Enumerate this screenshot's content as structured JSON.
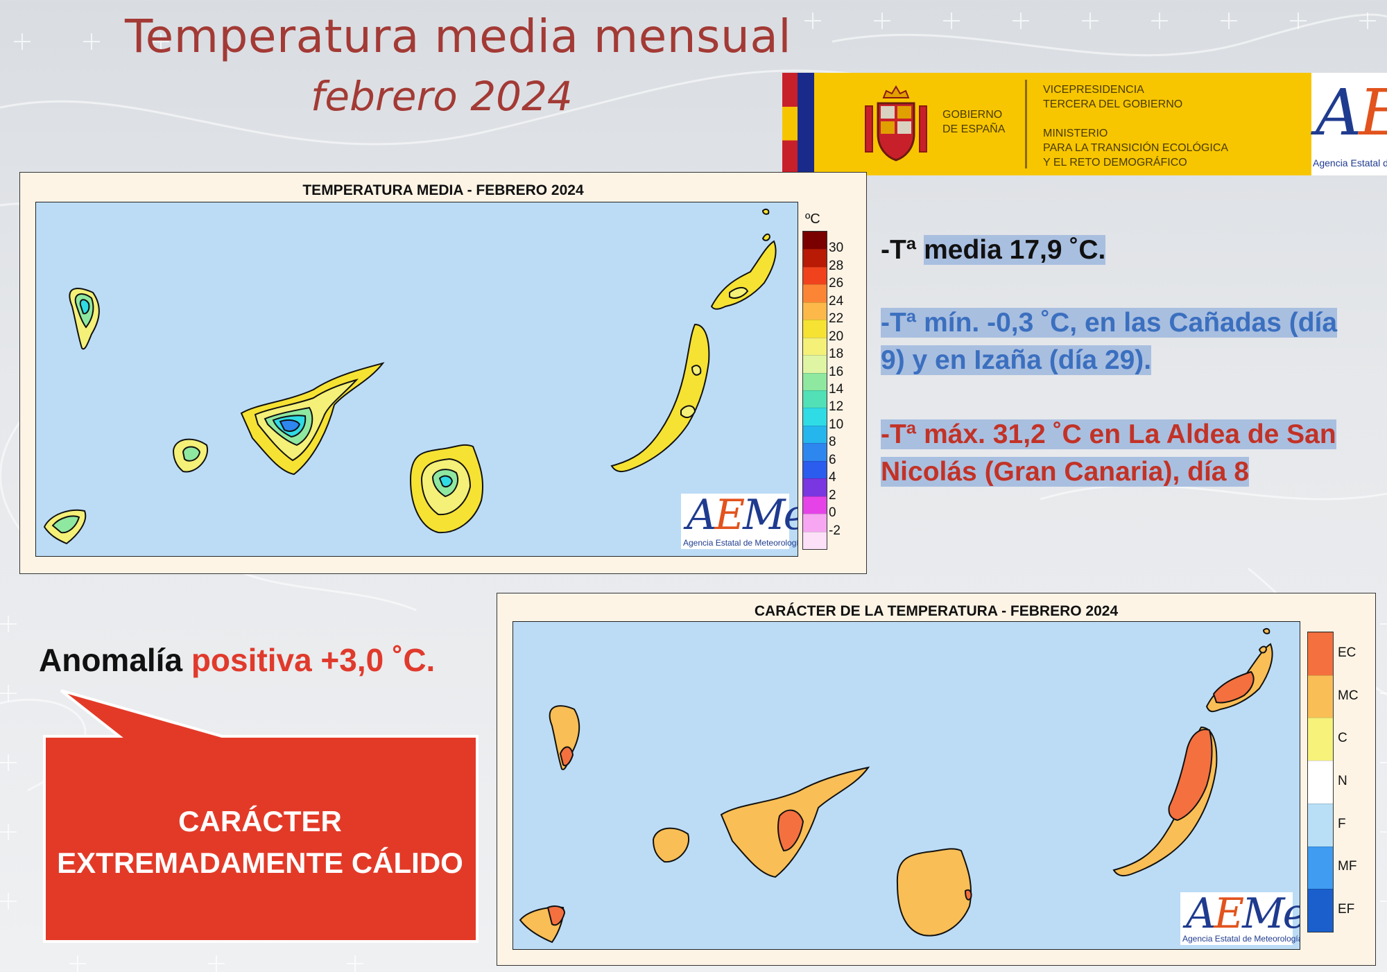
{
  "header": {
    "title": "Temperatura media mensual",
    "subtitle": "febrero 2024"
  },
  "gov_banner": {
    "government": "GOBIERNO\nDE ESPAÑA",
    "ministry": "VICEPRESIDENCIA\nTERCERA DEL GOBIERNO\n\nMINISTERIO\nPARA LA TRANSICIÓN ECOLÓGICA\nY EL RETO DEMOGRÁFICO",
    "logo_a": "A",
    "logo_e": "E",
    "logo_rest": "Met",
    "logo_caption": "Agencia Estatal de Meteorología"
  },
  "map_temperature": {
    "title": "TEMPERATURA MEDIA - FEBRERO 2024",
    "legend_unit": "ºC",
    "legend": [
      {
        "label": "30",
        "color": "#7a0000"
      },
      {
        "label": "28",
        "color": "#b81a06"
      },
      {
        "label": "26",
        "color": "#f0421c"
      },
      {
        "label": "24",
        "color": "#fc8535"
      },
      {
        "label": "22",
        "color": "#fdb84a"
      },
      {
        "label": "20",
        "color": "#f6e232"
      },
      {
        "label": "18",
        "color": "#f4f078"
      },
      {
        "label": "16",
        "color": "#dff5a3"
      },
      {
        "label": "14",
        "color": "#8fe8a0"
      },
      {
        "label": "12",
        "color": "#52e0b6"
      },
      {
        "label": "10",
        "color": "#2fdbe4"
      },
      {
        "label": "8",
        "color": "#25b6ee"
      },
      {
        "label": "6",
        "color": "#2e86ef"
      },
      {
        "label": "4",
        "color": "#2a5cee"
      },
      {
        "label": "2",
        "color": "#7a36e0"
      },
      {
        "label": "0",
        "color": "#e543e8"
      },
      {
        "label": "-2",
        "color": "#f7a6f2"
      },
      {
        "label": "",
        "color": "#fbe0f8"
      }
    ],
    "logo_caption": "Agencia Estatal de Meteorología"
  },
  "map_character": {
    "title": "CARÁCTER DE LA TEMPERATURA - FEBRERO 2024",
    "legend": [
      {
        "label": "EC",
        "color": "#f4703f"
      },
      {
        "label": "MC",
        "color": "#f9be55"
      },
      {
        "label": "C",
        "color": "#f7f27a"
      },
      {
        "label": "N",
        "color": "#ffffff"
      },
      {
        "label": "F",
        "color": "#b8dff5"
      },
      {
        "label": "MF",
        "color": "#3f9cf0"
      },
      {
        "label": "EF",
        "color": "#1a5fcc"
      }
    ],
    "logo_caption": "Agencia Estatal de Meteorología"
  },
  "stats": {
    "media_prefix": "-Tª ",
    "media_rest": "media 17,9 ˚C.",
    "min": "-Tª mín. -0,3 ˚C, en las Cañadas (día 9) y en Izaña (día 29).",
    "max": "-Tª máx.  31,2 ˚C en La Aldea de San Nicolás (Gran Canaria), día 8"
  },
  "anomaly": {
    "label": "Anomalía ",
    "value": "positiva +3,0 ˚C."
  },
  "callout": {
    "line1": "CARÁCTER",
    "line2": "EXTREMADAMENTE CÁLIDO",
    "color": "#e33a28"
  }
}
